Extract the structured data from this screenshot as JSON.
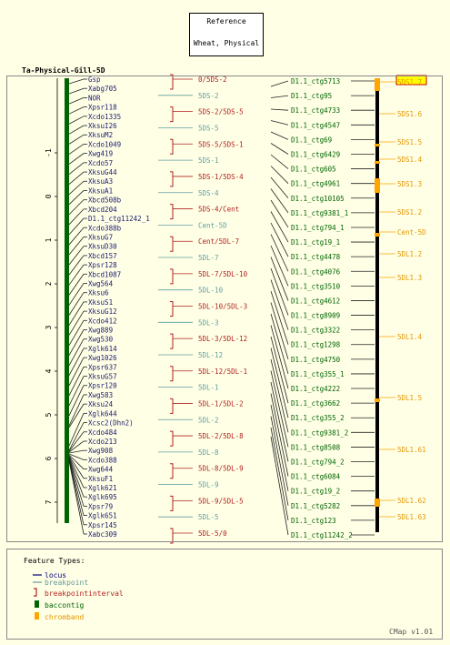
{
  "reference": {
    "line1": "Reference",
    "line2": "Wheat, Physical"
  },
  "map_title": "Ta-Physical-Gill-5D",
  "axis_ticks": [
    "-1",
    "0",
    "1",
    "2",
    "3",
    "4",
    "5",
    "6",
    "7"
  ],
  "loci": [
    "Gsp",
    "Xabg705",
    "NOR",
    "Xpsr118",
    "Xcdo1335",
    "XksuI26",
    "XksuM2",
    "Xcdo1049",
    "Xwg419",
    "Xcdo57",
    "XksuG44",
    "XksuA3",
    "XksuA1",
    "Xbcd508b",
    "Xbcd204",
    "D1.1_ctg11242_1",
    "Xcdo388b",
    "XksuG7",
    "XksuD30",
    "Xbcd157",
    "Xpsr128",
    "Xbcd1087",
    "Xwg564",
    "Xksu6",
    "XksuS1",
    "XksuG12",
    "Xcdo412",
    "Xwg889",
    "Xwg530",
    "Xglk614",
    "Xwg1026",
    "Xpsr637",
    "XksuG57",
    "Xpsr120",
    "Xwg583",
    "Xksu24",
    "Xglk644",
    "Xcsc2(Dhn2)",
    "Xcdo484",
    "Xcdo213",
    "Xwg908",
    "Xcdo388",
    "Xwg644",
    "XksuF1",
    "Xglk621",
    "Xglk695",
    "Xpsr79",
    "Xglk651",
    "Xpsr145",
    "Xabc309"
  ],
  "breakpoints": [
    {
      "label": "0/5DS-2",
      "kind": "interval"
    },
    {
      "label": "5DS-2",
      "kind": "point"
    },
    {
      "label": "5DS-2/5DS-5",
      "kind": "interval"
    },
    {
      "label": "5DS-5",
      "kind": "point"
    },
    {
      "label": "5DS-5/5DS-1",
      "kind": "interval"
    },
    {
      "label": "5DS-1",
      "kind": "point"
    },
    {
      "label": "5DS-1/5DS-4",
      "kind": "interval"
    },
    {
      "label": "5DS-4",
      "kind": "point"
    },
    {
      "label": "5DS-4/Cent",
      "kind": "interval"
    },
    {
      "label": "Cent-5D",
      "kind": "point"
    },
    {
      "label": "Cent/5DL-7",
      "kind": "interval"
    },
    {
      "label": "5DL-7",
      "kind": "point"
    },
    {
      "label": "5DL-7/5DL-10",
      "kind": "interval"
    },
    {
      "label": "5DL-10",
      "kind": "point"
    },
    {
      "label": "5DL-10/5DL-3",
      "kind": "interval"
    },
    {
      "label": "5DL-3",
      "kind": "point"
    },
    {
      "label": "5DL-3/5DL-12",
      "kind": "interval"
    },
    {
      "label": "5DL-12",
      "kind": "point"
    },
    {
      "label": "5DL-12/5DL-1",
      "kind": "interval"
    },
    {
      "label": "5DL-1",
      "kind": "point"
    },
    {
      "label": "5DL-1/5DL-2",
      "kind": "interval"
    },
    {
      "label": "5DL-2",
      "kind": "point"
    },
    {
      "label": "5DL-2/5DL-8",
      "kind": "interval"
    },
    {
      "label": "5DL-8",
      "kind": "point"
    },
    {
      "label": "5DL-8/5DL-9",
      "kind": "interval"
    },
    {
      "label": "5DL-9",
      "kind": "point"
    },
    {
      "label": "5DL-9/5DL-5",
      "kind": "interval"
    },
    {
      "label": "5DL-5",
      "kind": "point"
    },
    {
      "label": "5DL-5/0",
      "kind": "interval"
    }
  ],
  "contigs": [
    "D1.1_ctg5713",
    "D1.1_ctg95",
    "D1.1_ctg4733",
    "D1.1_ctg4547",
    "D1.1_ctg69",
    "D1.1_ctg6429",
    "D1.1_ctg605",
    "D1.1_ctg4961",
    "D1.1_ctg10105",
    "D1.1_ctg9381_1",
    "D1.1_ctg794_1",
    "D1.1_ctg19_1",
    "D1.1_ctg4478",
    "D1.1_ctg4076",
    "D1.1_ctg3510",
    "D1.1_ctg4612",
    "D1.1_ctg8909",
    "D1.1_ctg3322",
    "D1.1_ctg1298",
    "D1.1_ctg4750",
    "D1.1_ctg355_1",
    "D1.1_ctg4222",
    "D1.1_ctg3662",
    "D1.1_ctg355_2",
    "D1.1_ctg9381_2",
    "D1.1_ctg8508",
    "D1.1_ctg794_2",
    "D1.1_ctg6084",
    "D1.1_ctg19_2",
    "D1.1_ctg5282",
    "D1.1_ctg123",
    "D1.1_ctg11242_2"
  ],
  "chrombands": [
    {
      "label": "5DS1.7",
      "highlight": true
    },
    {
      "label": "5DS1.6"
    },
    {
      "label": "5DS1.5"
    },
    {
      "label": "5DS1.4"
    },
    {
      "label": "5DS1.3"
    },
    {
      "label": "5DS1.2"
    },
    {
      "label": "Cent-5D"
    },
    {
      "label": "5DL1.2"
    },
    {
      "label": "5DL1.3"
    },
    {
      "label": "5DL1.4"
    },
    {
      "label": "5DL1.5"
    },
    {
      "label": "5DL1.61"
    },
    {
      "label": "5DL1.62"
    },
    {
      "label": "5DL1.63"
    }
  ],
  "legend": {
    "title": "Feature Types:",
    "items": [
      {
        "label": "locus",
        "color": "#000080"
      },
      {
        "label": "breakpoint",
        "color": "#669999"
      },
      {
        "label": "breakpointinterval",
        "color": "#b22222"
      },
      {
        "label": "baccontig",
        "color": "#006400"
      },
      {
        "label": "chromband",
        "color": "#ffa500"
      }
    ]
  },
  "colors": {
    "locus": "#1a1a6e",
    "breakpoint": "#5f9ea0",
    "interval": "#b22222",
    "baccontig": "#006400",
    "chromband": "#ffa500",
    "chromband_text": "#e69500",
    "chrom_bar": "#000000"
  },
  "footer": "CMap v1.01"
}
